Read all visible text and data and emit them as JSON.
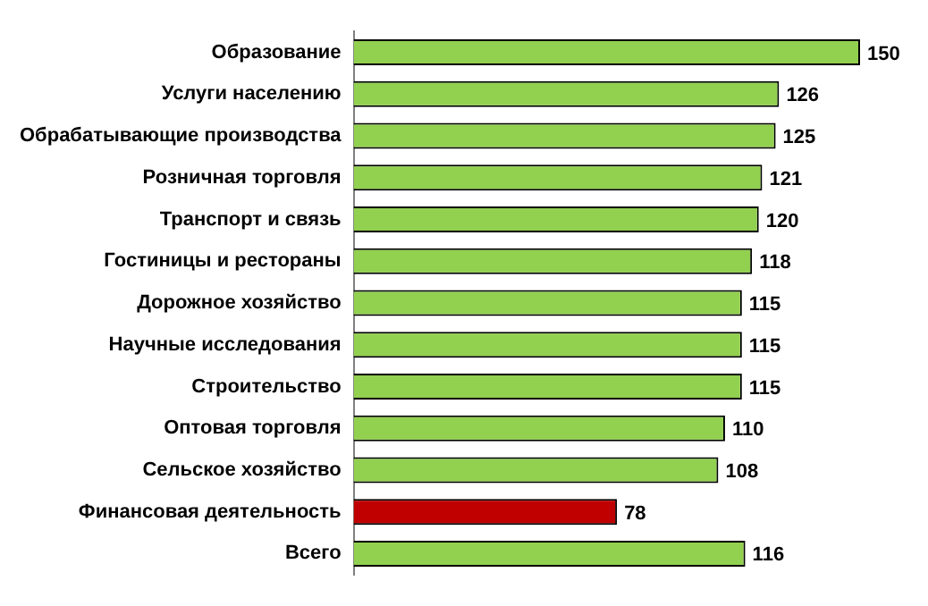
{
  "chart_data": {
    "type": "bar",
    "orientation": "horizontal",
    "categories": [
      "Образование",
      "Услуги населению",
      "Обрабатывающие производства",
      "Розничная торговля",
      "Транспорт и связь",
      "Гостиницы и рестораны",
      "Дорожное хозяйство",
      "Научные исследования",
      "Строительство",
      "Оптовая торговля",
      "Сельское хозяйство",
      "Финансовая деятельность",
      "Всего"
    ],
    "values": [
      150,
      126,
      125,
      121,
      120,
      118,
      115,
      115,
      115,
      110,
      108,
      78,
      116
    ],
    "colors": [
      "#92d050",
      "#92d050",
      "#92d050",
      "#92d050",
      "#92d050",
      "#92d050",
      "#92d050",
      "#92d050",
      "#92d050",
      "#92d050",
      "#92d050",
      "#c00000",
      "#92d050"
    ],
    "data_labels": true
  }
}
